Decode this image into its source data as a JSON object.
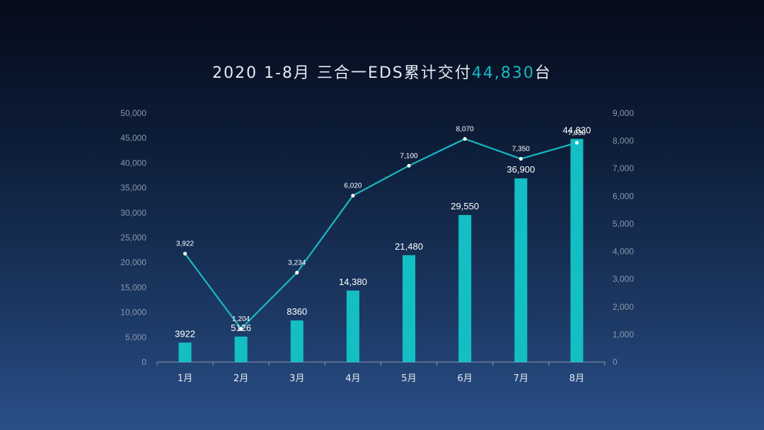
{
  "title": {
    "prefix": "2020 1-8月 三合一EDS累计交付",
    "highlight": "44,830",
    "suffix": "台"
  },
  "colors": {
    "accent": "#14bfc4",
    "line": "#19b8c2",
    "axis": "#8a97ab",
    "text": "#e6ebf2"
  },
  "chart_data": {
    "type": "bar",
    "categories": [
      "1月",
      "2月",
      "3月",
      "4月",
      "5月",
      "6月",
      "7月",
      "8月"
    ],
    "series": [
      {
        "type": "bar",
        "axis": "left",
        "values": [
          3922,
          5126,
          8360,
          14380,
          21480,
          29550,
          36900,
          44830
        ],
        "labels": [
          "3922",
          "5126",
          "8360",
          "14,380",
          "21,480",
          "29,550",
          "36,900",
          "44,830"
        ]
      },
      {
        "type": "line",
        "axis": "right",
        "values": [
          3922,
          1204,
          3234,
          6020,
          7100,
          8070,
          7350,
          7930
        ],
        "labels": [
          "3,922",
          "1,204",
          "3,234",
          "6,020",
          "7,100",
          "8,070",
          "7,350",
          "7,930"
        ]
      }
    ],
    "y_left": {
      "range": [
        0,
        50000
      ],
      "ticks": [
        "0",
        "5,000",
        "10,000",
        "15,000",
        "20,000",
        "25,000",
        "30,000",
        "35,000",
        "40,000",
        "45,000",
        "50,000"
      ]
    },
    "y_right": {
      "range": [
        0,
        9000
      ],
      "ticks": [
        "0",
        "1,000",
        "2,000",
        "3,000",
        "4,000",
        "5,000",
        "6,000",
        "7,000",
        "8,000",
        "9,000"
      ]
    },
    "grid": false,
    "legend": "none"
  }
}
